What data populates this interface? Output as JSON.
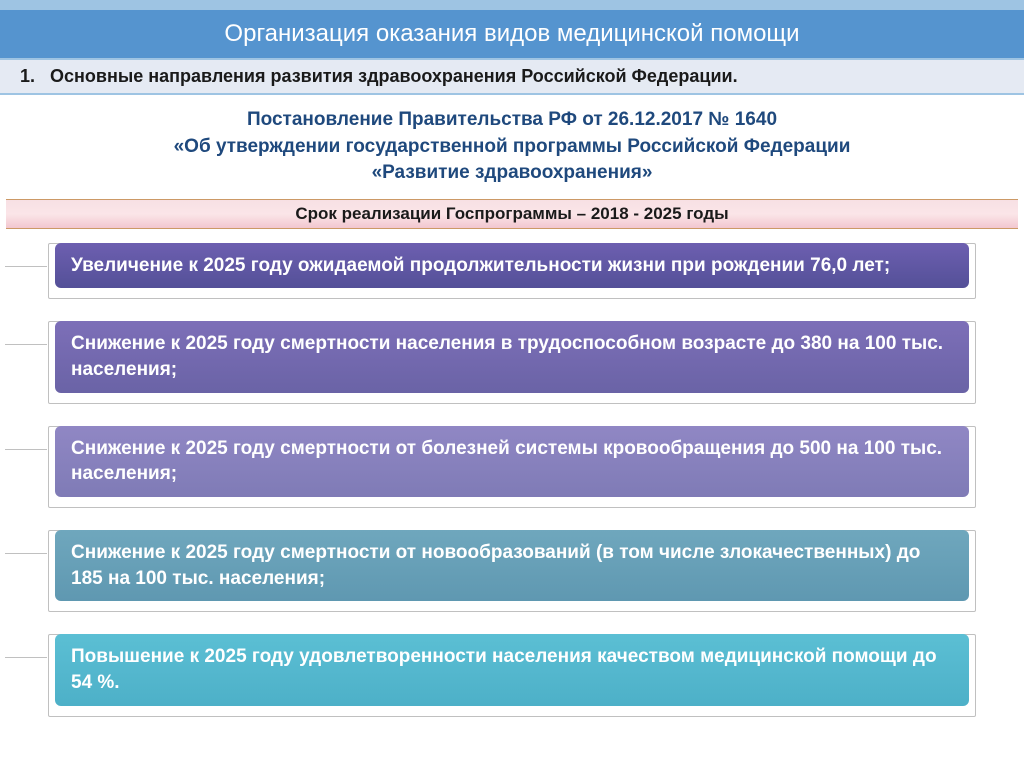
{
  "title": "Организация оказания видов медицинской помощи",
  "subtitle_num": "1.",
  "subtitle": "Основные направления развития здравоохранения Российской Федерации.",
  "decree": {
    "line1": "Постановление Правительства РФ от 26.12.2017 № 1640",
    "line2": "«Об утверждении государственной программы Российской Федерации",
    "line3": "«Развитие здравоохранения»"
  },
  "period": "Срок реализации Госпрограммы – 2018 - 2025 годы",
  "goals": [
    {
      "text": "Увеличение к 2025 году ожидаемой продолжительности жизни при рождении 76,0 лет;",
      "bg_class": "g1"
    },
    {
      "text": "Снижение к 2025 году смертности населения в трудоспособном возрасте до 380 на 100 тыс. населения;",
      "bg_class": "g2"
    },
    {
      "text": "Снижение к 2025 году смертности от болезней системы кровообращения  до 500 на 100 тыс. населения;",
      "bg_class": "g3"
    },
    {
      "text": "Снижение к 2025 году смертности от новообразований (в том числе злокачественных) до 185 на 100 тыс. населения;",
      "bg_class": "g4"
    },
    {
      "text": "Повышение  к 2025 году удовлетворенности населения качеством медицинской помощи до 54 %.",
      "bg_class": "g5"
    }
  ],
  "colors": {
    "title_bg": "#5594cf",
    "top_border": "#9ec4e3",
    "subtitle_bg": "#e5eaf3",
    "decree_text": "#1f497d"
  }
}
